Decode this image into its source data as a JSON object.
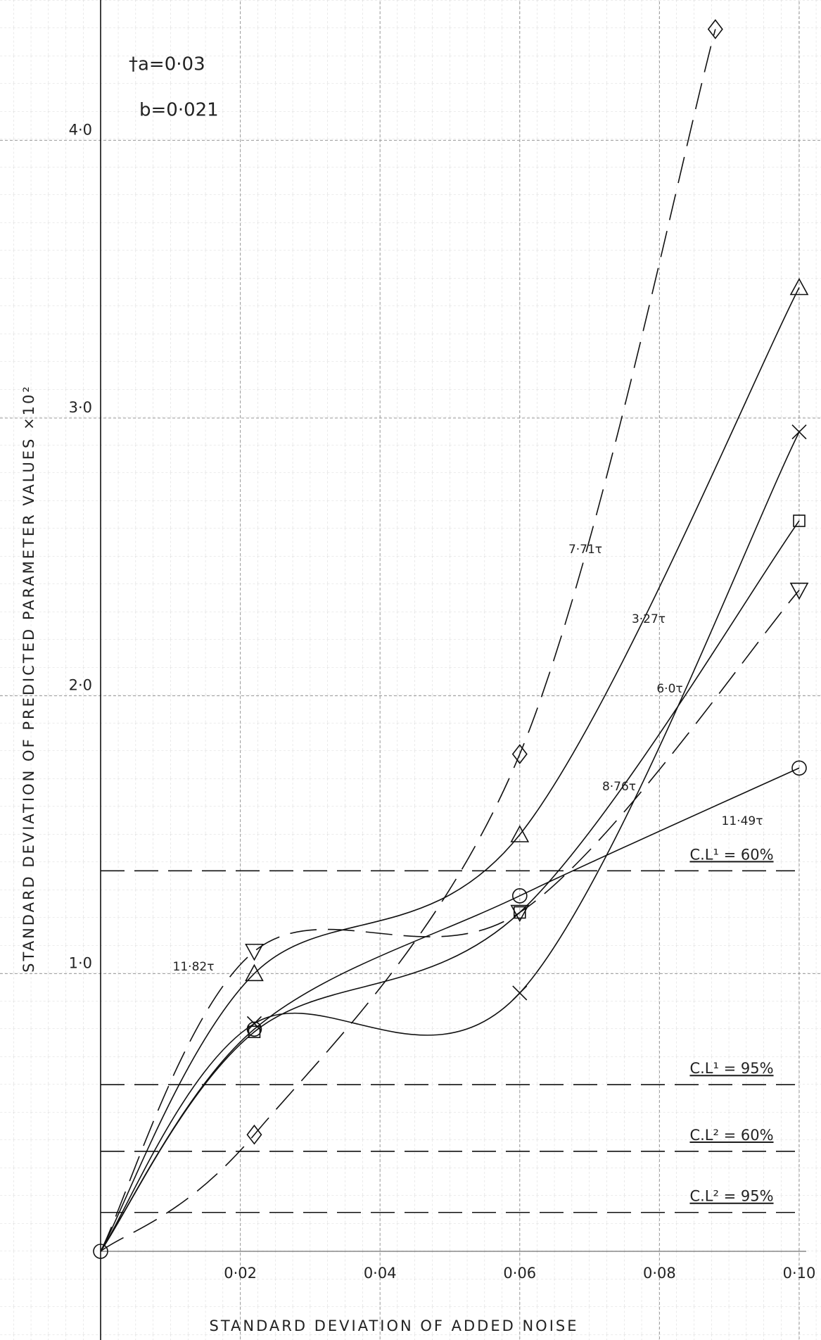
{
  "chart_data": {
    "type": "line",
    "x_label": "STANDARD DEVIATION OF ADDED NOISE",
    "y_label": "STANDARD DEVIATION OF PREDICTED PARAMETER VALUES ×10²",
    "annotations": [
      "†a=0·03",
      "b=0·021"
    ],
    "xlim": [
      0,
      0.1
    ],
    "ylim": [
      0,
      4.5
    ],
    "xticks": [
      {
        "value": 0.02,
        "label": "0·02"
      },
      {
        "value": 0.04,
        "label": "0·04"
      },
      {
        "value": 0.06,
        "label": "0·06"
      },
      {
        "value": 0.08,
        "label": "0·08"
      },
      {
        "value": 0.1,
        "label": "0·10"
      }
    ],
    "yticks": [
      {
        "value": 1,
        "label": "1·0"
      },
      {
        "value": 2,
        "label": "2·0"
      },
      {
        "value": 3,
        "label": "3·0"
      },
      {
        "value": 4,
        "label": "4·0"
      }
    ],
    "grid": true,
    "series": [
      {
        "name": "7·71τ",
        "color": "#111",
        "dashed": true,
        "marker": "diamond",
        "x": [
          0,
          0.022,
          0.06,
          0.088
        ],
        "values": [
          0,
          0.42,
          1.79,
          4.4
        ]
      },
      {
        "name": "3·27τ",
        "color": "#111",
        "dashed": false,
        "marker": "triangle-up",
        "x": [
          0,
          0.022,
          0.06,
          0.1
        ],
        "values": [
          0,
          1.0,
          1.5,
          3.47
        ]
      },
      {
        "name": "6·0τ",
        "color": "#111",
        "dashed": false,
        "marker": "cross",
        "x": [
          0,
          0.022,
          0.06,
          0.1
        ],
        "values": [
          0,
          0.82,
          0.93,
          2.95
        ]
      },
      {
        "name": "8·76τ",
        "color": "#111",
        "dashed": false,
        "marker": "square",
        "x": [
          0,
          0.022,
          0.06,
          0.1
        ],
        "values": [
          0,
          0.79,
          1.22,
          2.63
        ]
      },
      {
        "name": "11·49τ",
        "color": "#111",
        "dashed": false,
        "marker": "circle",
        "x": [
          0,
          0.022,
          0.06,
          0.1
        ],
        "values": [
          0,
          0.8,
          1.28,
          1.74
        ]
      },
      {
        "name": "11·82τ",
        "color": "#111",
        "dashed": true,
        "marker": "triangle-down",
        "x": [
          0,
          0.022,
          0.06,
          0.1
        ],
        "values": [
          0,
          1.08,
          1.22,
          2.38
        ]
      }
    ],
    "reference_lines": [
      {
        "label": "C.L¹ = 60%",
        "value": 1.37
      },
      {
        "label": "C.L¹ = 95%",
        "value": 0.6
      },
      {
        "label": "C.L² = 60%",
        "value": 0.36
      },
      {
        "label": "C.L² = 95%",
        "value": 0.14
      }
    ]
  }
}
